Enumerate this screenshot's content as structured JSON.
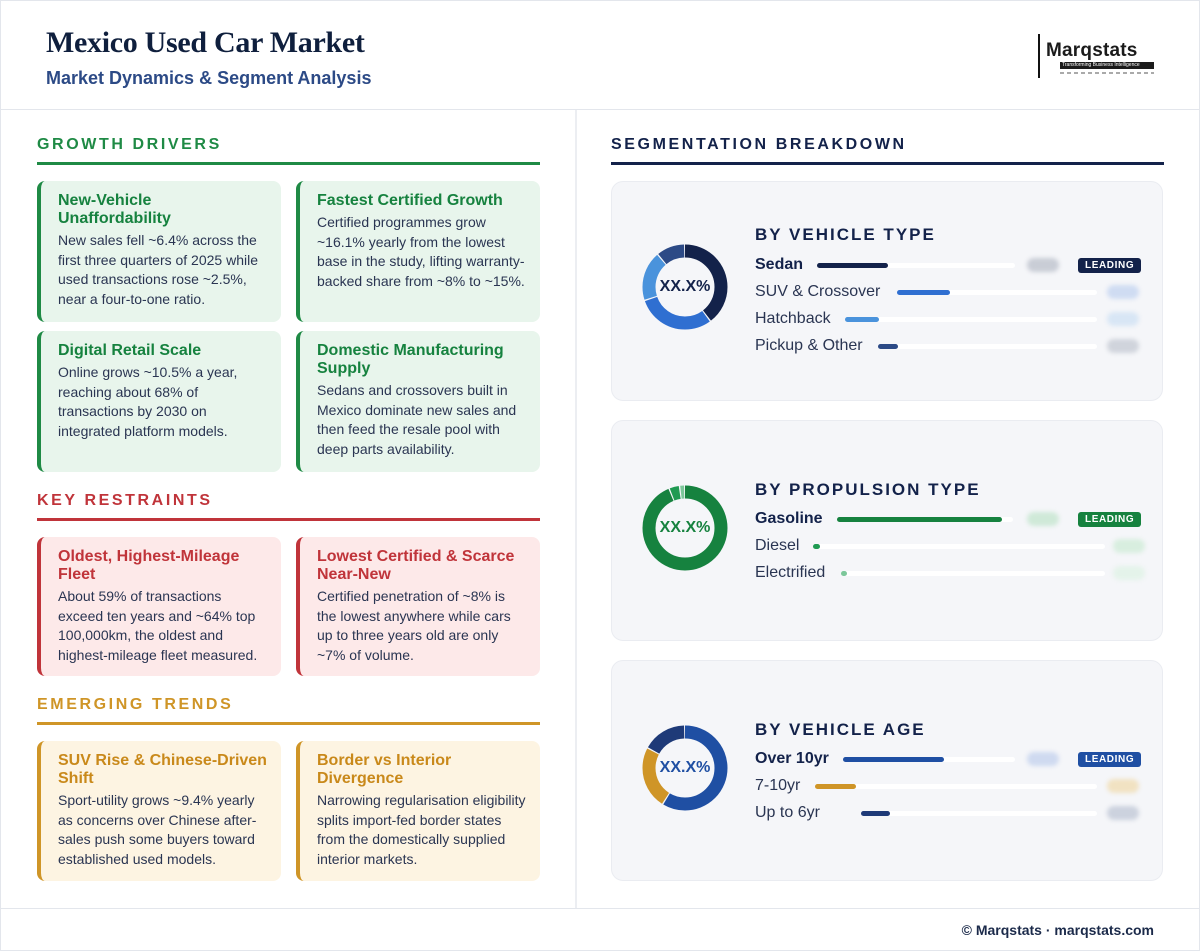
{
  "header": {
    "title": "Mexico Used Car Market",
    "subtitle": "Market Dynamics & Segment Analysis",
    "logo_text": "Marqstats",
    "logo_tagline": "Transforming Business Intelligence"
  },
  "left": {
    "growth": {
      "heading": "GROWTH DRIVERS",
      "color": "#1f8a45",
      "cards": [
        {
          "title": "New-Vehicle Unaffordability",
          "body": "New sales fell ~6.4% across the first three quarters of 2025 while used transactions rose ~2.5%, near a four-to-one ratio."
        },
        {
          "title": "Fastest Certified Growth",
          "body": "Certified programmes grow ~16.1% yearly from the lowest base in the study, lifting warranty-backed share from ~8% to ~15%."
        },
        {
          "title": "Digital Retail Scale",
          "body": "Online grows ~10.5% a year, reaching about 68% of transactions by 2030 on integrated platform models."
        },
        {
          "title": "Domestic Manufacturing Supply",
          "body": "Sedans and crossovers built in Mexico dominate new sales and then feed the resale pool with deep parts availability."
        }
      ]
    },
    "restraints": {
      "heading": "KEY RESTRAINTS",
      "color": "#c0343a",
      "cards": [
        {
          "title": "Oldest, Highest-Mileage Fleet",
          "body": "About 59% of transactions exceed ten years and ~64% top 100,000km, the oldest and highest-mileage fleet measured."
        },
        {
          "title": "Lowest Certified & Scarce Near-New",
          "body": "Certified penetration of ~8% is the lowest anywhere while cars up to three years old are only ~7% of volume."
        }
      ]
    },
    "trends": {
      "heading": "EMERGING TRENDS",
      "color": "#cf9527",
      "cards": [
        {
          "title": "SUV Rise & Chinese-Driven Shift",
          "body": "Sport-utility grows ~9.4% yearly as concerns over Chinese after-sales push some buyers toward established used models."
        },
        {
          "title": "Border vs Interior Divergence",
          "body": "Narrowing regularisation eligibility splits import-fed border states from the domestically supplied interior markets."
        }
      ]
    }
  },
  "right": {
    "heading": "SEGMENTATION BREAKDOWN",
    "leading_label": "LEADING",
    "donut_label": "XX.X%",
    "panels": [
      {
        "title": "BY VEHICLE TYPE",
        "donut_text_color": "#13224a",
        "rows": [
          {
            "label": "Sedan",
            "share": 0.4,
            "color": "#13224a"
          },
          {
            "label": "SUV & Crossover",
            "share": 0.3,
            "color": "#2f6fd1"
          },
          {
            "label": "Hatchback",
            "share": 0.19,
            "color": "#4a93dc"
          },
          {
            "label": "Pickup & Other",
            "share": 0.11,
            "color": "#2c4a86"
          }
        ]
      },
      {
        "title": "BY PROPULSION TYPE",
        "donut_text_color": "#16823f",
        "rows": [
          {
            "label": "Gasoline",
            "share": 0.94,
            "color": "#16823f"
          },
          {
            "label": "Diesel",
            "share": 0.04,
            "color": "#1f9a52"
          },
          {
            "label": "Electrified",
            "share": 0.02,
            "color": "#7cc79a"
          }
        ]
      },
      {
        "title": "BY VEHICLE AGE",
        "donut_text_color": "#1f4fa3",
        "rows": [
          {
            "label": "Over 10yr",
            "share": 0.59,
            "color": "#1f4fa3"
          },
          {
            "label": "7-10yr",
            "share": 0.24,
            "color": "#cf9527"
          },
          {
            "label": "Up to 6yr",
            "share": 0.17,
            "color": "#1e3a78"
          }
        ]
      }
    ]
  },
  "footer": {
    "text": "© Marqstats · marqstats.com"
  }
}
